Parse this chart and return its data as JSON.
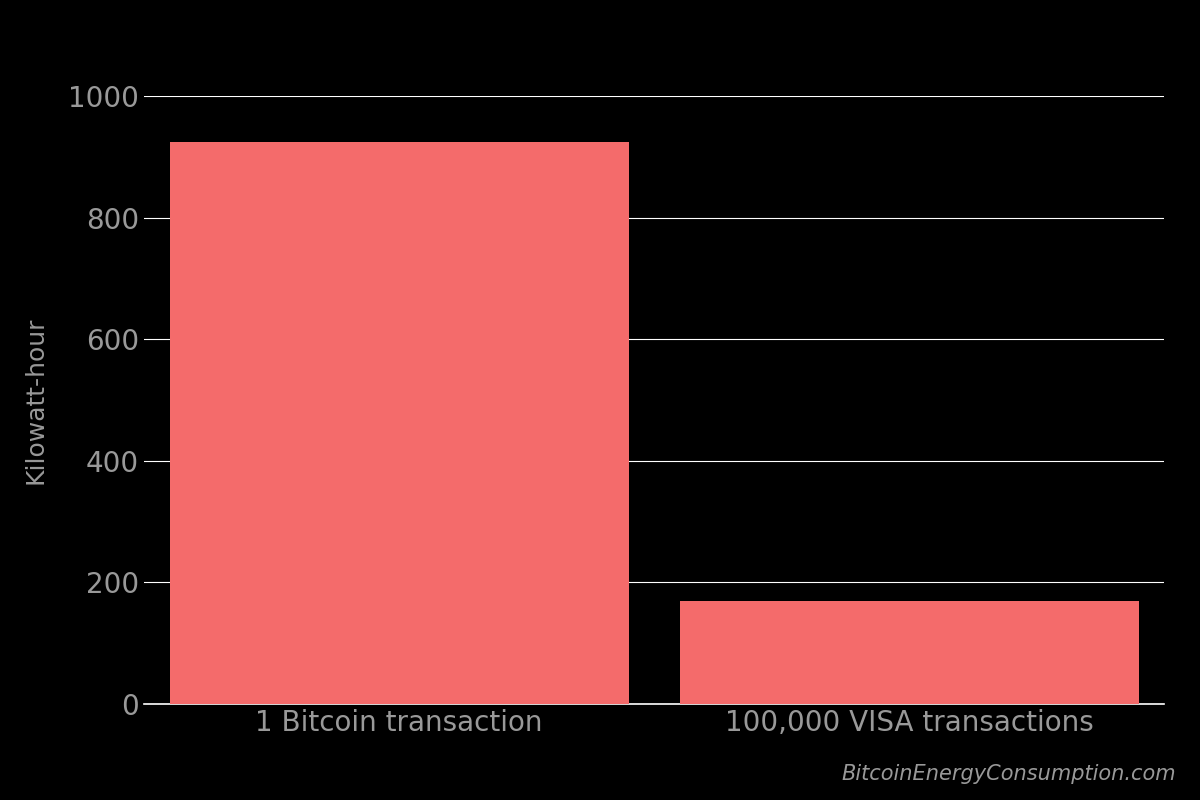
{
  "categories": [
    "1 Bitcoin transaction",
    "100,000 VISA transactions"
  ],
  "values": [
    925,
    169
  ],
  "bar_color": "#F46B6B",
  "background_color": "#000000",
  "text_color": "#999999",
  "axis_color": "#ffffff",
  "grid_color": "#ffffff",
  "ylabel": "Kilowatt-hour",
  "ylim": [
    0,
    1000
  ],
  "yticks": [
    0,
    200,
    400,
    600,
    800,
    1000
  ],
  "watermark": "BitcoinEnergyConsumption.com",
  "bar_width": 0.45,
  "tick_fontsize": 20,
  "label_fontsize": 18,
  "watermark_fontsize": 15
}
